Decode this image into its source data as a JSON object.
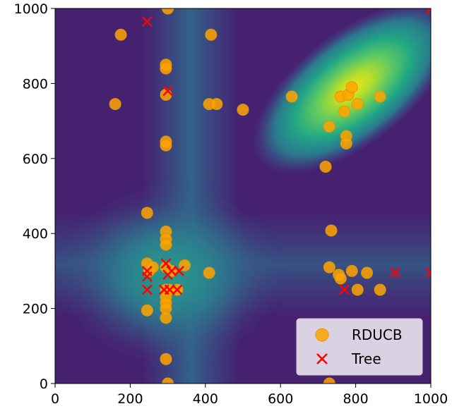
{
  "chart_data": {
    "type": "scatter",
    "title": "",
    "xlabel": "",
    "ylabel": "",
    "xlim": [
      0,
      1000
    ],
    "ylim": [
      0,
      1000
    ],
    "grid": false,
    "legend_position": "bottom-right",
    "x_ticks": [
      "0",
      "200",
      "400",
      "600",
      "800",
      "1000"
    ],
    "y_ticks": [
      "0",
      "200",
      "400",
      "600",
      "800",
      "1000"
    ],
    "background": "heatmap (viridis) with bright peak near (800, 800), secondary moderate region near (300, 300)",
    "series": [
      {
        "name": "RDUCB",
        "marker": "circle",
        "color": "#ffa500",
        "points": [
          [
            300,
            1000
          ],
          [
            175,
            930
          ],
          [
            415,
            930
          ],
          [
            295,
            850
          ],
          [
            295,
            840
          ],
          [
            295,
            770
          ],
          [
            160,
            745
          ],
          [
            410,
            745
          ],
          [
            430,
            745
          ],
          [
            500,
            730
          ],
          [
            630,
            765
          ],
          [
            760,
            765
          ],
          [
            780,
            770
          ],
          [
            790,
            790
          ],
          [
            805,
            745
          ],
          [
            770,
            725
          ],
          [
            865,
            765
          ],
          [
            730,
            685
          ],
          [
            775,
            660
          ],
          [
            775,
            640
          ],
          [
            295,
            645
          ],
          [
            295,
            635
          ],
          [
            720,
            578
          ],
          [
            245,
            455
          ],
          [
            295,
            405
          ],
          [
            295,
            385
          ],
          [
            295,
            370
          ],
          [
            735,
            408
          ],
          [
            245,
            320
          ],
          [
            250,
            300
          ],
          [
            260,
            310
          ],
          [
            295,
            310
          ],
          [
            310,
            300
          ],
          [
            345,
            315
          ],
          [
            410,
            295
          ],
          [
            730,
            310
          ],
          [
            755,
            290
          ],
          [
            760,
            280
          ],
          [
            790,
            300
          ],
          [
            830,
            295
          ],
          [
            295,
            250
          ],
          [
            305,
            250
          ],
          [
            325,
            250
          ],
          [
            295,
            230
          ],
          [
            295,
            215
          ],
          [
            295,
            200
          ],
          [
            245,
            195
          ],
          [
            295,
            175
          ],
          [
            805,
            250
          ],
          [
            865,
            250
          ],
          [
            295,
            65
          ],
          [
            300,
            0
          ],
          [
            730,
            0
          ]
        ]
      },
      {
        "name": "Tree",
        "marker": "x",
        "color": "#ff0000",
        "points": [
          [
            245,
            965
          ],
          [
            300,
            780
          ],
          [
            295,
            320
          ],
          [
            245,
            300
          ],
          [
            245,
            285
          ],
          [
            300,
            290
          ],
          [
            310,
            300
          ],
          [
            330,
            300
          ],
          [
            245,
            250
          ],
          [
            290,
            250
          ],
          [
            305,
            250
          ],
          [
            325,
            250
          ],
          [
            770,
            250
          ],
          [
            905,
            295
          ],
          [
            1000,
            295
          ],
          [
            1000,
            1000
          ]
        ]
      }
    ]
  }
}
